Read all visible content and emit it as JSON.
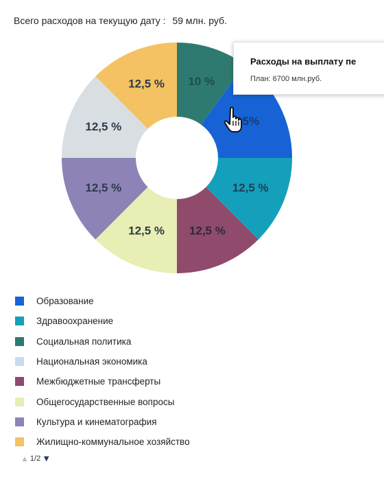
{
  "header": {
    "label": "Всего расходов на текущую дату :",
    "value": "59 млн. руб."
  },
  "tooltip": {
    "title": "Расходы на выплату пе",
    "plan": "План: 6700 млн.руб."
  },
  "chart_data": {
    "type": "pie",
    "donut": true,
    "values_unit": "%",
    "slices": [
      {
        "name": "Социальная политика",
        "value": 10,
        "label": "10 %",
        "color": "#2f7a70",
        "label_color": "#1e4d48"
      },
      {
        "name": "Образование",
        "value": 15,
        "label": "15%",
        "color": "#1763d6",
        "label_color": "#163a7a"
      },
      {
        "name": "Здравоохранение",
        "value": 12.5,
        "label": "12,5 %",
        "color": "#14a0ba",
        "label_color": "#1f3e57"
      },
      {
        "name": "Межбюджетные трансферты",
        "value": 12.5,
        "label": "12,5 %",
        "color": "#8f4a6c",
        "label_color": "#2e2a38"
      },
      {
        "name": "Общегосударственные вопросы",
        "value": 12.5,
        "label": "12,5 %",
        "color": "#e8eeb4",
        "label_color": "#2e3a4a"
      },
      {
        "name": "Культура и кинематография",
        "value": 12.5,
        "label": "12,5 %",
        "color": "#8e83b6",
        "label_color": "#2e3a4a"
      },
      {
        "name": "Национальная экономика",
        "value": 12.5,
        "label": "12,5 %",
        "color": "#d8dee2",
        "label_color": "#2e3a4a"
      },
      {
        "name": "Жилищно-коммунальное хозяйство",
        "value": 12.5,
        "label": "12,5 %",
        "color": "#f4c262",
        "label_color": "#2e3a4a"
      }
    ]
  },
  "legend": {
    "items": [
      {
        "label": "Образование",
        "color": "#1763d6"
      },
      {
        "label": "Здравоохранение",
        "color": "#14a0ba"
      },
      {
        "label": "Социальная политика",
        "color": "#2f7a70"
      },
      {
        "label": "Национальная экономика",
        "color": "#c7daf3"
      },
      {
        "label": "Межбюджетные трансферты",
        "color": "#8f4a6c"
      },
      {
        "label": "Общегосударственные вопросы",
        "color": "#e8eeb4"
      },
      {
        "label": "Культура и кинематография",
        "color": "#8e83b6"
      },
      {
        "label": "Жилищно-коммунальное хозяйство",
        "color": "#f4c262"
      }
    ]
  },
  "pager": {
    "text": "1/2"
  }
}
